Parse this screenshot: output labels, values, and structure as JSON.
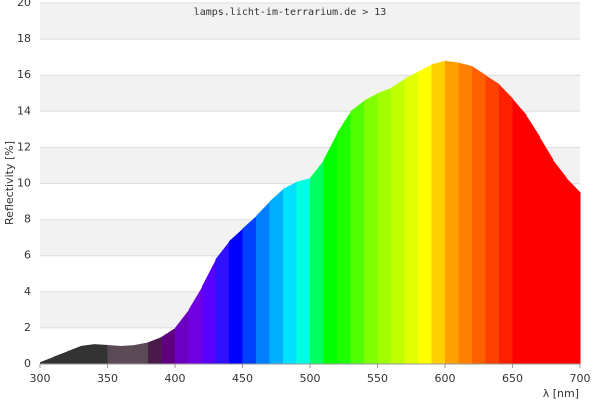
{
  "chart_data": {
    "type": "spectrum-area",
    "title": "lamps.licht-im-terrarium.de > 13",
    "y_label": "Reflectivity [%]",
    "x_label": "λ [nm]",
    "x": [
      300,
      310,
      320,
      330,
      340,
      350,
      360,
      370,
      380,
      390,
      400,
      410,
      420,
      430,
      440,
      450,
      460,
      470,
      480,
      490,
      500,
      510,
      520,
      530,
      540,
      550,
      560,
      570,
      580,
      590,
      600,
      610,
      620,
      630,
      640,
      650,
      660,
      670,
      680,
      690,
      700
    ],
    "values": [
      0.1,
      0.4,
      0.7,
      1.0,
      1.1,
      1.05,
      1.0,
      1.05,
      1.2,
      1.5,
      2.0,
      3.0,
      4.3,
      5.8,
      6.8,
      7.5,
      8.2,
      9.0,
      9.7,
      10.1,
      10.3,
      11.3,
      12.8,
      14.0,
      14.6,
      15.0,
      15.3,
      15.8,
      16.2,
      16.6,
      16.8,
      16.7,
      16.5,
      16.0,
      15.5,
      14.7,
      13.8,
      12.6,
      11.3,
      10.3,
      9.5
    ],
    "colors": [
      "#333333",
      "#333333",
      "#333333",
      "#333333",
      "#333333",
      "#5a4a55",
      "#5a4a55",
      "#5a4a55",
      "#4a1a4a",
      "#600080",
      "#6a00c0",
      "#7000e0",
      "#5a00ff",
      "#3010ff",
      "#0000ff",
      "#0040ff",
      "#0080ff",
      "#00b0ff",
      "#00e0ff",
      "#00ffe0",
      "#00ff60",
      "#00ff00",
      "#20ff00",
      "#50ff00",
      "#80ff00",
      "#a0ff00",
      "#c0ff00",
      "#e0ff00",
      "#ffff00",
      "#ffd000",
      "#ffa000",
      "#ff8000",
      "#ff6000",
      "#ff4000",
      "#ff2000",
      "#ff0000",
      "#ff0000",
      "#ff0000",
      "#ff0000",
      "#ff0000"
    ],
    "xlim": [
      300,
      700
    ],
    "ylim": [
      0,
      20
    ],
    "xticks": [
      300,
      350,
      400,
      450,
      500,
      550,
      600,
      650,
      700
    ],
    "yticks": [
      0,
      2,
      4,
      6,
      8,
      10,
      12,
      14,
      16,
      18,
      20
    ],
    "grid": true,
    "band_color": "#f2f2f2",
    "grid_color": "#dddddd"
  }
}
